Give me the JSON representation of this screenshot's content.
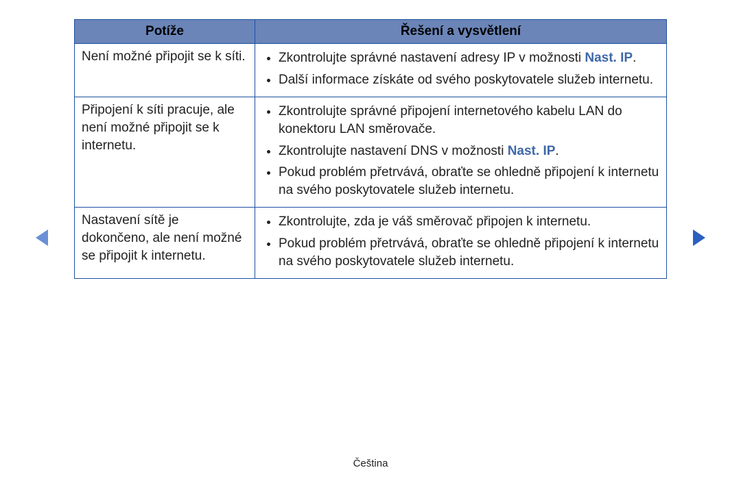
{
  "table": {
    "headers": {
      "problems": "Potíže",
      "solutions": "Řešení a vysvětlení"
    },
    "rows": [
      {
        "problem": "Není možné připojit se k síti.",
        "solutions": [
          {
            "pre": "Zkontrolujte správné nastavení adresy IP v možnosti ",
            "hl": "Nast. IP",
            "post": "."
          },
          {
            "pre": "Další informace získáte od svého poskytovatele služeb internetu.",
            "hl": "",
            "post": ""
          }
        ]
      },
      {
        "problem": "Připojení k síti pracuje, ale není možné připojit se k internetu.",
        "solutions": [
          {
            "pre": "Zkontrolujte správné připojení internetového kabelu LAN do konektoru LAN směrovače.",
            "hl": "",
            "post": ""
          },
          {
            "pre": "Zkontrolujte nastavení DNS v možnosti ",
            "hl": "Nast. IP",
            "post": "."
          },
          {
            "pre": "Pokud problém přetrvává, obraťte se ohledně připojení k internetu na svého poskytovatele služeb internetu.",
            "hl": "",
            "post": ""
          }
        ]
      },
      {
        "problem": "Nastavení sítě je dokončeno, ale není možné se připojit k internetu.",
        "solutions": [
          {
            "pre": "Zkontrolujte, zda je váš směrovač připojen k internetu.",
            "hl": "",
            "post": ""
          },
          {
            "pre": "Pokud problém přetrvává, obraťte se ohledně připojení k internetu na svého poskytovatele služeb internetu.",
            "hl": "",
            "post": ""
          }
        ]
      }
    ]
  },
  "footer": "Čeština",
  "colors": {
    "header_bg": "#6b85b8",
    "border": "#1e4fa0",
    "highlight": "#3f68a8",
    "arrow_left": "#6b8fd6",
    "arrow_right": "#2b5fc0",
    "text": "#222222",
    "background": "#ffffff"
  }
}
